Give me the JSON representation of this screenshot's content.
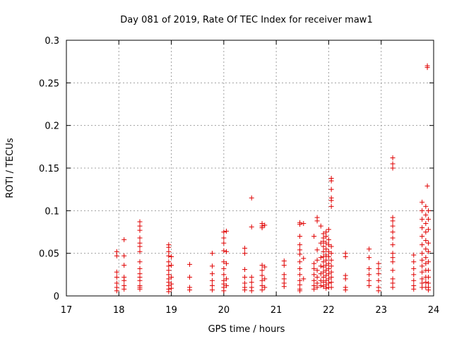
{
  "chart_data": {
    "type": "scatter",
    "title": "Day 081 of 2019, Rate Of TEC Index for receiver maw1",
    "xlabel": "GPS time / hours",
    "ylabel": "ROTI / TECUs",
    "xlim": [
      17,
      24
    ],
    "ylim": [
      0,
      0.3
    ],
    "x_ticks": [
      "17",
      "18",
      "19",
      "20",
      "21",
      "22",
      "23",
      "24"
    ],
    "y_ticks": [
      "0",
      "0.05",
      "0.1",
      "0.15",
      "0.2",
      "0.25",
      "0.3"
    ],
    "grid": true,
    "marker": "plus",
    "color": "#e00000",
    "points": [
      [
        17.96,
        0.052
      ],
      [
        17.96,
        0.047
      ],
      [
        17.96,
        0.028
      ],
      [
        17.96,
        0.022
      ],
      [
        17.96,
        0.015
      ],
      [
        17.96,
        0.01
      ],
      [
        17.96,
        0.006
      ],
      [
        18.1,
        0.066
      ],
      [
        18.1,
        0.047
      ],
      [
        18.1,
        0.036
      ],
      [
        18.1,
        0.022
      ],
      [
        18.1,
        0.018
      ],
      [
        18.1,
        0.012
      ],
      [
        18.1,
        0.008
      ],
      [
        18.4,
        0.087
      ],
      [
        18.4,
        0.082
      ],
      [
        18.4,
        0.077
      ],
      [
        18.4,
        0.068
      ],
      [
        18.4,
        0.062
      ],
      [
        18.4,
        0.058
      ],
      [
        18.4,
        0.052
      ],
      [
        18.4,
        0.04
      ],
      [
        18.4,
        0.032
      ],
      [
        18.4,
        0.026
      ],
      [
        18.4,
        0.022
      ],
      [
        18.4,
        0.018
      ],
      [
        18.4,
        0.012
      ],
      [
        18.4,
        0.01
      ],
      [
        18.4,
        0.008
      ],
      [
        18.95,
        0.06
      ],
      [
        18.95,
        0.057
      ],
      [
        18.95,
        0.052
      ],
      [
        18.95,
        0.047
      ],
      [
        18.95,
        0.04
      ],
      [
        18.95,
        0.035
      ],
      [
        18.95,
        0.03
      ],
      [
        18.95,
        0.025
      ],
      [
        18.95,
        0.02
      ],
      [
        18.95,
        0.016
      ],
      [
        18.95,
        0.012
      ],
      [
        18.95,
        0.008
      ],
      [
        18.95,
        0.005
      ],
      [
        19.0,
        0.046
      ],
      [
        19.0,
        0.036
      ],
      [
        19.0,
        0.022
      ],
      [
        19.0,
        0.014
      ],
      [
        19.0,
        0.009
      ],
      [
        19.35,
        0.037
      ],
      [
        19.35,
        0.022
      ],
      [
        19.35,
        0.01
      ],
      [
        19.35,
        0.007
      ],
      [
        19.78,
        0.05
      ],
      [
        19.78,
        0.035
      ],
      [
        19.78,
        0.026
      ],
      [
        19.78,
        0.018
      ],
      [
        19.78,
        0.012
      ],
      [
        19.78,
        0.007
      ],
      [
        20.0,
        0.075
      ],
      [
        20.0,
        0.068
      ],
      [
        20.0,
        0.062
      ],
      [
        20.0,
        0.053
      ],
      [
        20.0,
        0.04
      ],
      [
        20.0,
        0.032
      ],
      [
        20.0,
        0.025
      ],
      [
        20.0,
        0.018
      ],
      [
        20.0,
        0.014
      ],
      [
        20.0,
        0.01
      ],
      [
        20.0,
        0.006
      ],
      [
        20.05,
        0.076
      ],
      [
        20.05,
        0.052
      ],
      [
        20.05,
        0.038
      ],
      [
        20.05,
        0.02
      ],
      [
        20.05,
        0.012
      ],
      [
        20.4,
        0.056
      ],
      [
        20.4,
        0.05
      ],
      [
        20.4,
        0.031
      ],
      [
        20.4,
        0.022
      ],
      [
        20.4,
        0.015
      ],
      [
        20.4,
        0.01
      ],
      [
        20.4,
        0.007
      ],
      [
        20.53,
        0.115
      ],
      [
        20.53,
        0.081
      ],
      [
        20.53,
        0.022
      ],
      [
        20.53,
        0.016
      ],
      [
        20.53,
        0.01
      ],
      [
        20.53,
        0.006
      ],
      [
        20.73,
        0.085
      ],
      [
        20.73,
        0.082
      ],
      [
        20.73,
        0.08
      ],
      [
        20.73,
        0.036
      ],
      [
        20.73,
        0.03
      ],
      [
        20.73,
        0.024
      ],
      [
        20.73,
        0.018
      ],
      [
        20.73,
        0.012
      ],
      [
        20.73,
        0.007
      ],
      [
        20.78,
        0.083
      ],
      [
        20.78,
        0.034
      ],
      [
        20.78,
        0.02
      ],
      [
        20.78,
        0.01
      ],
      [
        21.15,
        0.041
      ],
      [
        21.15,
        0.036
      ],
      [
        21.15,
        0.025
      ],
      [
        21.15,
        0.02
      ],
      [
        21.15,
        0.015
      ],
      [
        21.15,
        0.011
      ],
      [
        21.45,
        0.086
      ],
      [
        21.45,
        0.084
      ],
      [
        21.45,
        0.07
      ],
      [
        21.45,
        0.06
      ],
      [
        21.45,
        0.054
      ],
      [
        21.45,
        0.049
      ],
      [
        21.45,
        0.04
      ],
      [
        21.45,
        0.032
      ],
      [
        21.45,
        0.025
      ],
      [
        21.45,
        0.018
      ],
      [
        21.45,
        0.013
      ],
      [
        21.45,
        0.008
      ],
      [
        21.45,
        0.006
      ],
      [
        21.52,
        0.085
      ],
      [
        21.52,
        0.044
      ],
      [
        21.52,
        0.02
      ],
      [
        21.72,
        0.07
      ],
      [
        21.72,
        0.038
      ],
      [
        21.72,
        0.032
      ],
      [
        21.72,
        0.025
      ],
      [
        21.72,
        0.018
      ],
      [
        21.72,
        0.012
      ],
      [
        21.72,
        0.008
      ],
      [
        21.78,
        0.092
      ],
      [
        21.78,
        0.088
      ],
      [
        21.78,
        0.054
      ],
      [
        21.78,
        0.042
      ],
      [
        21.78,
        0.03
      ],
      [
        21.78,
        0.022
      ],
      [
        21.78,
        0.015
      ],
      [
        21.78,
        0.01
      ],
      [
        21.85,
        0.082
      ],
      [
        21.85,
        0.062
      ],
      [
        21.85,
        0.045
      ],
      [
        21.85,
        0.035
      ],
      [
        21.85,
        0.026
      ],
      [
        21.85,
        0.018
      ],
      [
        21.85,
        0.012
      ],
      [
        21.9,
        0.073
      ],
      [
        21.9,
        0.068
      ],
      [
        21.9,
        0.064
      ],
      [
        21.9,
        0.058
      ],
      [
        21.9,
        0.052
      ],
      [
        21.9,
        0.046
      ],
      [
        21.9,
        0.04
      ],
      [
        21.9,
        0.034
      ],
      [
        21.9,
        0.028
      ],
      [
        21.9,
        0.022
      ],
      [
        21.9,
        0.016
      ],
      [
        21.9,
        0.011
      ],
      [
        21.95,
        0.075
      ],
      [
        21.95,
        0.07
      ],
      [
        21.95,
        0.062
      ],
      [
        21.95,
        0.055
      ],
      [
        21.95,
        0.048
      ],
      [
        21.95,
        0.042
      ],
      [
        21.95,
        0.036
      ],
      [
        21.95,
        0.03
      ],
      [
        21.95,
        0.024
      ],
      [
        21.95,
        0.018
      ],
      [
        21.95,
        0.013
      ],
      [
        21.95,
        0.009
      ],
      [
        22.0,
        0.078
      ],
      [
        22.0,
        0.066
      ],
      [
        22.0,
        0.06
      ],
      [
        22.0,
        0.052
      ],
      [
        22.0,
        0.046
      ],
      [
        22.0,
        0.038
      ],
      [
        22.0,
        0.032
      ],
      [
        22.0,
        0.026
      ],
      [
        22.0,
        0.02
      ],
      [
        22.0,
        0.015
      ],
      [
        22.0,
        0.01
      ],
      [
        22.05,
        0.138
      ],
      [
        22.05,
        0.135
      ],
      [
        22.05,
        0.125
      ],
      [
        22.05,
        0.115
      ],
      [
        22.05,
        0.112
      ],
      [
        22.05,
        0.105
      ],
      [
        22.05,
        0.058
      ],
      [
        22.05,
        0.05
      ],
      [
        22.05,
        0.042
      ],
      [
        22.05,
        0.035
      ],
      [
        22.05,
        0.028
      ],
      [
        22.05,
        0.022
      ],
      [
        22.05,
        0.016
      ],
      [
        22.05,
        0.01
      ],
      [
        22.32,
        0.05
      ],
      [
        22.32,
        0.046
      ],
      [
        22.32,
        0.024
      ],
      [
        22.32,
        0.02
      ],
      [
        22.32,
        0.01
      ],
      [
        22.32,
        0.007
      ],
      [
        22.77,
        0.055
      ],
      [
        22.77,
        0.045
      ],
      [
        22.77,
        0.032
      ],
      [
        22.77,
        0.025
      ],
      [
        22.77,
        0.018
      ],
      [
        22.77,
        0.012
      ],
      [
        22.95,
        0.038
      ],
      [
        22.95,
        0.032
      ],
      [
        22.95,
        0.026
      ],
      [
        22.95,
        0.018
      ],
      [
        22.95,
        0.01
      ],
      [
        22.95,
        0.006
      ],
      [
        23.22,
        0.162
      ],
      [
        23.22,
        0.155
      ],
      [
        23.22,
        0.15
      ],
      [
        23.22,
        0.092
      ],
      [
        23.22,
        0.088
      ],
      [
        23.22,
        0.082
      ],
      [
        23.22,
        0.075
      ],
      [
        23.22,
        0.068
      ],
      [
        23.22,
        0.06
      ],
      [
        23.22,
        0.05
      ],
      [
        23.22,
        0.045
      ],
      [
        23.22,
        0.04
      ],
      [
        23.22,
        0.03
      ],
      [
        23.22,
        0.02
      ],
      [
        23.22,
        0.015
      ],
      [
        23.22,
        0.01
      ],
      [
        23.62,
        0.048
      ],
      [
        23.62,
        0.04
      ],
      [
        23.62,
        0.032
      ],
      [
        23.62,
        0.025
      ],
      [
        23.62,
        0.018
      ],
      [
        23.62,
        0.012
      ],
      [
        23.62,
        0.008
      ],
      [
        23.78,
        0.11
      ],
      [
        23.78,
        0.1
      ],
      [
        23.78,
        0.09
      ],
      [
        23.78,
        0.08
      ],
      [
        23.78,
        0.07
      ],
      [
        23.78,
        0.06
      ],
      [
        23.78,
        0.05
      ],
      [
        23.78,
        0.042
      ],
      [
        23.78,
        0.035
      ],
      [
        23.78,
        0.028
      ],
      [
        23.78,
        0.02
      ],
      [
        23.78,
        0.015
      ],
      [
        23.78,
        0.01
      ],
      [
        23.85,
        0.105
      ],
      [
        23.85,
        0.095
      ],
      [
        23.85,
        0.085
      ],
      [
        23.85,
        0.075
      ],
      [
        23.85,
        0.065
      ],
      [
        23.85,
        0.055
      ],
      [
        23.85,
        0.045
      ],
      [
        23.85,
        0.038
      ],
      [
        23.85,
        0.03
      ],
      [
        23.85,
        0.022
      ],
      [
        23.85,
        0.016
      ],
      [
        23.85,
        0.01
      ],
      [
        23.88,
        0.27
      ],
      [
        23.88,
        0.268
      ],
      [
        23.88,
        0.129
      ],
      [
        23.9,
        0.1
      ],
      [
        23.9,
        0.09
      ],
      [
        23.9,
        0.078
      ],
      [
        23.9,
        0.062
      ],
      [
        23.9,
        0.052
      ],
      [
        23.9,
        0.04
      ],
      [
        23.9,
        0.03
      ],
      [
        23.9,
        0.022
      ],
      [
        23.9,
        0.015
      ],
      [
        23.9,
        0.01
      ],
      [
        23.9,
        0.007
      ]
    ]
  }
}
